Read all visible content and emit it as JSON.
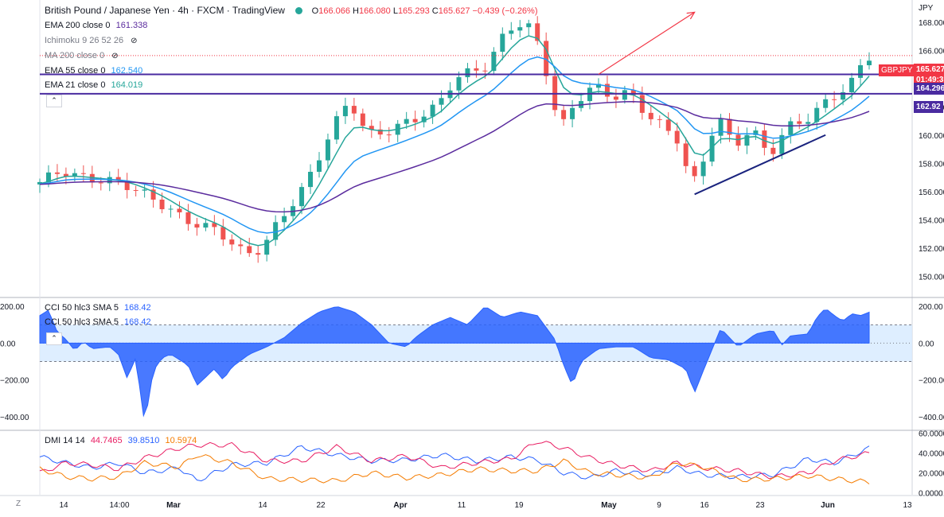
{
  "header": {
    "title": "British Pound / Japanese Yen · 4h · FXCM · TradingView",
    "ohlc": [
      {
        "k": "O",
        "v": "166.066"
      },
      {
        "k": "H",
        "v": "166.080"
      },
      {
        "k": "L",
        "v": "165.293"
      },
      {
        "k": "C",
        "v": "165.627"
      }
    ],
    "change": "−0.439 (−0.26%)",
    "currency": "JPY"
  },
  "indicators": [
    {
      "label": "EMA 200 close 0",
      "value": "161.338",
      "color": "#5b2c9e"
    },
    {
      "label": "Ichimoku 9 26 52 26",
      "value": "",
      "color": "#787b86"
    },
    {
      "label": "MA 200 close 0",
      "value": "",
      "color": "#787b86"
    },
    {
      "label": "EMA 55 close 0",
      "value": "162.540",
      "color": "#2196f3"
    },
    {
      "label": "EMA 21 close 0",
      "value": "164.019",
      "color": "#26a69a"
    }
  ],
  "price_tags": {
    "symbol": "GBPJPY",
    "last": "165.627",
    "countdown": "01:49:3",
    "level1": "164.296",
    "level2": "162.92"
  },
  "cci_legend": [
    "CCI 50 hlc3 SMA 5",
    "168.42"
  ],
  "dmi_legend": {
    "label": "DMI 14 14",
    "plus": "44.7465",
    "minus": "39.8510",
    "adx": "10.5974"
  },
  "colors": {
    "up": "#26a69a",
    "down": "#ef5350",
    "ema200": "#5b2c9e",
    "ema55": "#2196f3",
    "ema21": "#26a69a",
    "hline": "#4a2ba0",
    "trend": "#1a237e",
    "arrow": "#f23645",
    "cci": "#2962ff",
    "plus_di": "#2962ff",
    "minus_di": "#e91e63",
    "adx": "#f57c00"
  },
  "z_label": "Z",
  "chart_data": [
    {
      "type": "candlestick",
      "title": "British Pound / Japanese Yen · 4h · FXCM",
      "ylabel": "JPY",
      "ylim": [
        149,
        169
      ],
      "y_ticks": [
        "150.000",
        "152.000",
        "154.000",
        "156.000",
        "158.000",
        "160.000",
        "162.000",
        "164.000",
        "166.000",
        "168.000"
      ],
      "x_ticks": [
        "14",
        "14:00",
        "Mar",
        "14",
        "22",
        "Apr",
        "11",
        "19",
        "May",
        "9",
        "16",
        "23",
        "Jun",
        "13"
      ],
      "close_path": [
        [
          0,
          156.5
        ],
        [
          3,
          157.5
        ],
        [
          5,
          157.0
        ],
        [
          10,
          156.6
        ],
        [
          14,
          155.3
        ],
        [
          17,
          154.0
        ],
        [
          21,
          153.2
        ],
        [
          24,
          151.5
        ],
        [
          26,
          152.0
        ],
        [
          28,
          154.0
        ],
        [
          31,
          156.5
        ],
        [
          34,
          160.5
        ],
        [
          36,
          162.5
        ],
        [
          38,
          160.0
        ],
        [
          40,
          160.2
        ],
        [
          43,
          161.0
        ],
        [
          46,
          162.0
        ],
        [
          48,
          164.0
        ],
        [
          50,
          164.5
        ],
        [
          52,
          165.0
        ],
        [
          53,
          166.5
        ],
        [
          55,
          168.0
        ],
        [
          57,
          167.5
        ],
        [
          59,
          163.5
        ],
        [
          60,
          160.2
        ],
        [
          62,
          162.5
        ],
        [
          64,
          163.5
        ],
        [
          66,
          162.7
        ],
        [
          68,
          163.0
        ],
        [
          70,
          161.5
        ],
        [
          72,
          160.5
        ],
        [
          74,
          159.5
        ],
        [
          75,
          156.0
        ],
        [
          77,
          159.0
        ],
        [
          78,
          161.5
        ],
        [
          80,
          159.2
        ],
        [
          82,
          160.5
        ],
        [
          84,
          158.5
        ],
        [
          86,
          160.5
        ],
        [
          88,
          161.0
        ],
        [
          90,
          162.0
        ],
        [
          92,
          163.0
        ],
        [
          94,
          164.0
        ],
        [
          95,
          165.6
        ]
      ],
      "ema21_last": 164.019,
      "ema55_last": 162.54,
      "ema200_last": 161.338,
      "horizontal_levels": [
        164.296,
        162.92
      ],
      "annotations": [
        {
          "type": "arrow",
          "from": [
            64,
            164.3
          ],
          "to": [
            75,
            168.7
          ]
        },
        {
          "type": "trendline",
          "from": [
            75,
            155.8
          ],
          "to": [
            90,
            160.0
          ]
        }
      ]
    },
    {
      "type": "area",
      "title": "CCI 50 hlc3 SMA 5",
      "ylim": [
        -470,
        240
      ],
      "y_ticks": [
        "200.00",
        "0.00",
        "−200.00",
        "−400.00"
      ],
      "band": [
        -100,
        100
      ],
      "last": 168.42,
      "path": [
        [
          0,
          150
        ],
        [
          1,
          180
        ],
        [
          2,
          60
        ],
        [
          3,
          20
        ],
        [
          4,
          -40
        ],
        [
          5,
          10
        ],
        [
          6,
          -30
        ],
        [
          8,
          -20
        ],
        [
          9,
          -60
        ],
        [
          10,
          -190
        ],
        [
          11,
          -80
        ],
        [
          12,
          -440
        ],
        [
          13,
          -150
        ],
        [
          14,
          -80
        ],
        [
          15,
          -60
        ],
        [
          17,
          -120
        ],
        [
          18,
          -230
        ],
        [
          20,
          -140
        ],
        [
          21,
          -200
        ],
        [
          22,
          -130
        ],
        [
          24,
          -60
        ],
        [
          26,
          -20
        ],
        [
          28,
          30
        ],
        [
          30,
          110
        ],
        [
          32,
          170
        ],
        [
          34,
          200
        ],
        [
          36,
          170
        ],
        [
          38,
          100
        ],
        [
          40,
          0
        ],
        [
          42,
          -20
        ],
        [
          43,
          30
        ],
        [
          45,
          100
        ],
        [
          47,
          140
        ],
        [
          49,
          100
        ],
        [
          51,
          200
        ],
        [
          53,
          140
        ],
        [
          55,
          170
        ],
        [
          57,
          150
        ],
        [
          59,
          20
        ],
        [
          60,
          -120
        ],
        [
          61,
          -230
        ],
        [
          62,
          -100
        ],
        [
          64,
          -30
        ],
        [
          66,
          -20
        ],
        [
          68,
          -20
        ],
        [
          70,
          -80
        ],
        [
          72,
          -90
        ],
        [
          74,
          -140
        ],
        [
          75,
          -270
        ],
        [
          76,
          -150
        ],
        [
          78,
          80
        ],
        [
          80,
          -20
        ],
        [
          82,
          50
        ],
        [
          84,
          70
        ],
        [
          85,
          -10
        ],
        [
          86,
          40
        ],
        [
          88,
          50
        ],
        [
          89,
          140
        ],
        [
          90,
          190
        ],
        [
          91,
          150
        ],
        [
          92,
          120
        ],
        [
          93,
          160
        ],
        [
          94,
          150
        ],
        [
          95,
          168.42
        ]
      ]
    },
    {
      "type": "line",
      "title": "DMI 14 14",
      "ylim": [
        -2,
        62
      ],
      "y_ticks": [
        "60.0000",
        "40.0000",
        "20.0000",
        "0.0000"
      ],
      "series": [
        {
          "name": "+DI",
          "values": [
            [
              0,
              36
            ],
            [
              3,
              30
            ],
            [
              6,
              25
            ],
            [
              9,
              30
            ],
            [
              12,
              20
            ],
            [
              16,
              25
            ],
            [
              18,
              12
            ],
            [
              22,
              28
            ],
            [
              26,
              30
            ],
            [
              30,
              46
            ],
            [
              34,
              38
            ],
            [
              38,
              32
            ],
            [
              42,
              33
            ],
            [
              46,
              38
            ],
            [
              50,
              32
            ],
            [
              54,
              36
            ],
            [
              57,
              33
            ],
            [
              60,
              20
            ],
            [
              63,
              15
            ],
            [
              66,
              22
            ],
            [
              70,
              18
            ],
            [
              73,
              25
            ],
            [
              76,
              18
            ],
            [
              80,
              16
            ],
            [
              84,
              18
            ],
            [
              88,
              34
            ],
            [
              91,
              30
            ],
            [
              95,
              44.7465
            ]
          ]
        },
        {
          "name": "−DI",
          "values": [
            [
              0,
              20
            ],
            [
              3,
              30
            ],
            [
              6,
              28
            ],
            [
              9,
              24
            ],
            [
              12,
              35
            ],
            [
              16,
              45
            ],
            [
              18,
              48
            ],
            [
              22,
              48
            ],
            [
              26,
              32
            ],
            [
              30,
              32
            ],
            [
              34,
              46
            ],
            [
              38,
              32
            ],
            [
              42,
              37
            ],
            [
              46,
              25
            ],
            [
              50,
              30
            ],
            [
              54,
              34
            ],
            [
              57,
              52
            ],
            [
              60,
              45
            ],
            [
              63,
              35
            ],
            [
              66,
              28
            ],
            [
              70,
              22
            ],
            [
              73,
              30
            ],
            [
              76,
              25
            ],
            [
              80,
              22
            ],
            [
              84,
              16
            ],
            [
              88,
              20
            ],
            [
              91,
              32
            ],
            [
              95,
              39.851
            ]
          ]
        },
        {
          "name": "ADX",
          "values": [
            [
              0,
              24
            ],
            [
              3,
              16
            ],
            [
              6,
              14
            ],
            [
              9,
              16
            ],
            [
              12,
              30
            ],
            [
              16,
              26
            ],
            [
              18,
              38
            ],
            [
              22,
              30
            ],
            [
              26,
              14
            ],
            [
              30,
              13
            ],
            [
              34,
              12
            ],
            [
              38,
              20
            ],
            [
              42,
              15
            ],
            [
              46,
              18
            ],
            [
              50,
              24
            ],
            [
              54,
              22
            ],
            [
              57,
              22
            ],
            [
              60,
              32
            ],
            [
              63,
              20
            ],
            [
              66,
              18
            ],
            [
              70,
              15
            ],
            [
              73,
              30
            ],
            [
              76,
              26
            ],
            [
              80,
              13
            ],
            [
              84,
              14
            ],
            [
              88,
              17
            ],
            [
              91,
              14
            ],
            [
              95,
              10.5974
            ]
          ]
        }
      ]
    }
  ]
}
